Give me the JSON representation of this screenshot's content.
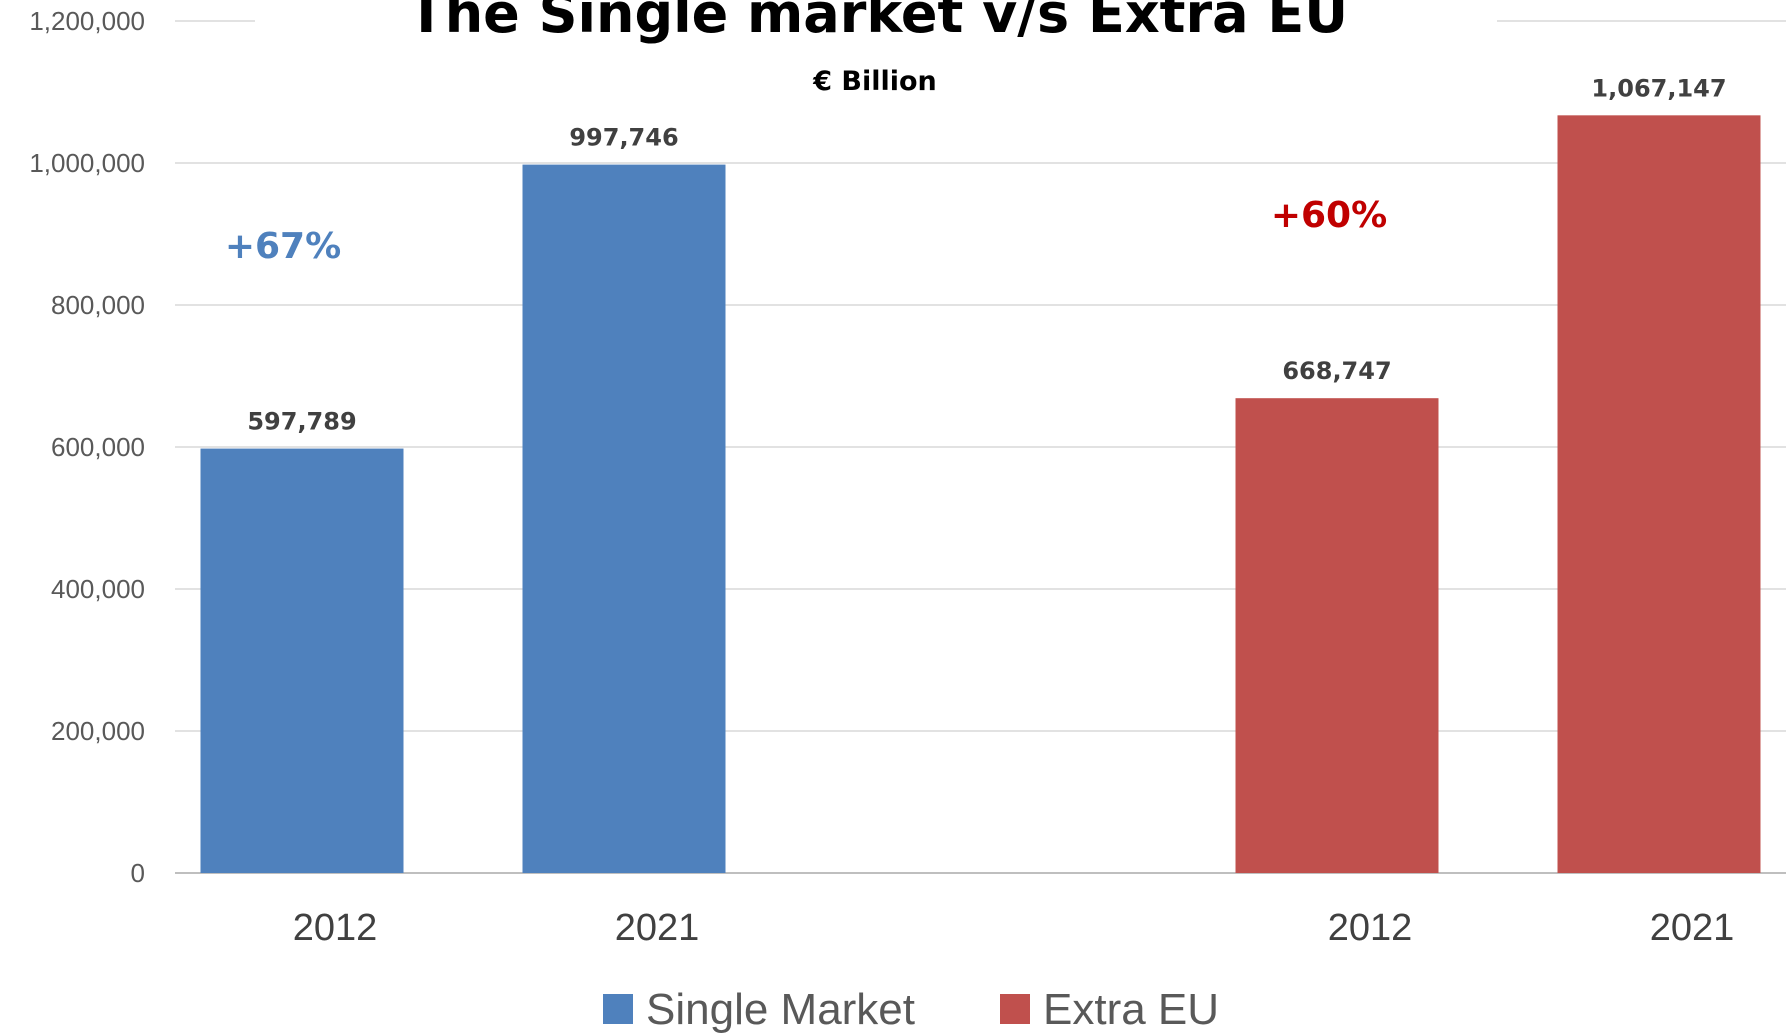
{
  "chart_data": {
    "type": "bar",
    "title": "The Single market v/s Extra EU",
    "subtitle": "€ Billion",
    "categories": [
      "2012",
      "2021",
      "2012",
      "2021"
    ],
    "series": [
      {
        "name": "Single Market",
        "color": "#4F81BD",
        "values": [
          597789,
          997746,
          null,
          null
        ]
      },
      {
        "name": "Extra EU",
        "color": "#C0504D",
        "values": [
          null,
          null,
          668747,
          1067147
        ]
      }
    ],
    "data_labels": [
      "597,789",
      "997,746",
      "668,747",
      "1,067,147"
    ],
    "ylim": [
      0,
      1200000
    ],
    "yticks": [
      0,
      200000,
      400000,
      600000,
      800000,
      1000000,
      1200000
    ],
    "ytick_labels": [
      "0",
      "200,000",
      "400,000",
      "600,000",
      "800,000",
      "1,000,000",
      "1,200,000"
    ],
    "annotations": [
      {
        "text": "+67%",
        "color": "#4F81BD"
      },
      {
        "text": "+60%",
        "color": "#C00000"
      }
    ],
    "grid": true,
    "legend_position": "bottom",
    "xlabel": "",
    "ylabel": ""
  }
}
